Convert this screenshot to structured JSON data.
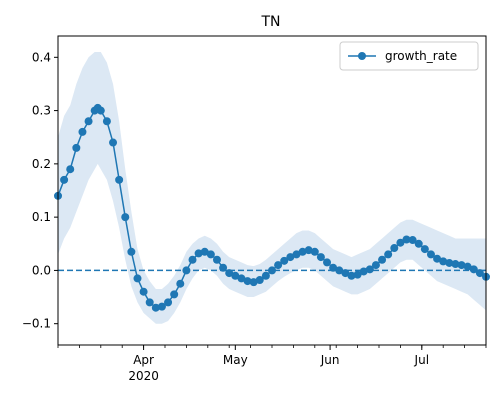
{
  "chart_data": {
    "type": "line",
    "title": "TN",
    "xlabel": "",
    "ylabel": "",
    "x_range": [
      "2020-03-04",
      "2020-07-22"
    ],
    "ylim": [
      -0.14,
      0.44
    ],
    "x_ticks": [
      {
        "date": "2020-04-01",
        "label": "Apr",
        "sublabel": "2020"
      },
      {
        "date": "2020-05-01",
        "label": "May",
        "sublabel": ""
      },
      {
        "date": "2020-06-01",
        "label": "Jun",
        "sublabel": ""
      },
      {
        "date": "2020-07-01",
        "label": "Jul",
        "sublabel": ""
      }
    ],
    "y_ticks": [
      {
        "value": -0.1,
        "label": "−0.1"
      },
      {
        "value": 0.0,
        "label": "0.0"
      },
      {
        "value": 0.1,
        "label": "0.1"
      },
      {
        "value": 0.2,
        "label": "0.2"
      },
      {
        "value": 0.3,
        "label": "0.3"
      },
      {
        "value": 0.4,
        "label": "0.4"
      }
    ],
    "legend": {
      "position": "top-right",
      "label": "growth_rate"
    },
    "reference_line": {
      "y": 0.0,
      "style": "dashed"
    },
    "colors": {
      "line": "#1f77b4",
      "band": "#dce8f4"
    },
    "series": [
      {
        "name": "growth_rate",
        "points": [
          [
            "2020-03-04",
            0.14,
            0.03,
            0.25
          ],
          [
            "2020-03-06",
            0.17,
            0.06,
            0.29
          ],
          [
            "2020-03-08",
            0.19,
            0.08,
            0.31
          ],
          [
            "2020-03-10",
            0.23,
            0.11,
            0.35
          ],
          [
            "2020-03-12",
            0.26,
            0.14,
            0.38
          ],
          [
            "2020-03-14",
            0.28,
            0.17,
            0.4
          ],
          [
            "2020-03-16",
            0.3,
            0.19,
            0.41
          ],
          [
            "2020-03-17",
            0.305,
            0.2,
            0.41
          ],
          [
            "2020-03-18",
            0.3,
            0.19,
            0.41
          ],
          [
            "2020-03-20",
            0.28,
            0.17,
            0.39
          ],
          [
            "2020-03-22",
            0.24,
            0.13,
            0.35
          ],
          [
            "2020-03-24",
            0.17,
            0.08,
            0.28
          ],
          [
            "2020-03-26",
            0.1,
            0.02,
            0.19
          ],
          [
            "2020-03-28",
            0.035,
            -0.03,
            0.11
          ],
          [
            "2020-03-30",
            -0.015,
            -0.06,
            0.04
          ],
          [
            "2020-04-01",
            -0.04,
            -0.08,
            0.0
          ],
          [
            "2020-04-03",
            -0.06,
            -0.09,
            -0.02
          ],
          [
            "2020-04-05",
            -0.07,
            -0.1,
            -0.035
          ],
          [
            "2020-04-07",
            -0.068,
            -0.1,
            -0.035
          ],
          [
            "2020-04-09",
            -0.06,
            -0.095,
            -0.025
          ],
          [
            "2020-04-11",
            -0.045,
            -0.08,
            -0.01
          ],
          [
            "2020-04-13",
            -0.025,
            -0.06,
            0.01
          ],
          [
            "2020-04-15",
            0.0,
            -0.035,
            0.035
          ],
          [
            "2020-04-17",
            0.02,
            -0.015,
            0.05
          ],
          [
            "2020-04-19",
            0.032,
            0.0,
            0.06
          ],
          [
            "2020-04-21",
            0.035,
            0.005,
            0.065
          ],
          [
            "2020-04-23",
            0.03,
            0.0,
            0.06
          ],
          [
            "2020-04-25",
            0.02,
            -0.01,
            0.05
          ],
          [
            "2020-04-27",
            0.005,
            -0.025,
            0.035
          ],
          [
            "2020-04-29",
            -0.005,
            -0.035,
            0.025
          ],
          [
            "2020-05-01",
            -0.01,
            -0.04,
            0.02
          ],
          [
            "2020-05-03",
            -0.015,
            -0.045,
            0.015
          ],
          [
            "2020-05-05",
            -0.02,
            -0.05,
            0.01
          ],
          [
            "2020-05-07",
            -0.022,
            -0.05,
            0.008
          ],
          [
            "2020-05-09",
            -0.018,
            -0.045,
            0.012
          ],
          [
            "2020-05-11",
            -0.01,
            -0.04,
            0.02
          ],
          [
            "2020-05-13",
            0.0,
            -0.03,
            0.03
          ],
          [
            "2020-05-15",
            0.01,
            -0.02,
            0.04
          ],
          [
            "2020-05-17",
            0.018,
            -0.012,
            0.05
          ],
          [
            "2020-05-19",
            0.025,
            -0.005,
            0.06
          ],
          [
            "2020-05-21",
            0.03,
            0.0,
            0.07
          ],
          [
            "2020-05-23",
            0.035,
            0.005,
            0.075
          ],
          [
            "2020-05-25",
            0.038,
            0.005,
            0.075
          ],
          [
            "2020-05-27",
            0.035,
            0.0,
            0.07
          ],
          [
            "2020-05-29",
            0.025,
            -0.01,
            0.06
          ],
          [
            "2020-05-31",
            0.015,
            -0.02,
            0.05
          ],
          [
            "2020-06-02",
            0.005,
            -0.03,
            0.04
          ],
          [
            "2020-06-04",
            0.0,
            -0.035,
            0.035
          ],
          [
            "2020-06-06",
            -0.005,
            -0.04,
            0.03
          ],
          [
            "2020-06-08",
            -0.01,
            -0.045,
            0.025
          ],
          [
            "2020-06-10",
            -0.008,
            -0.045,
            0.03
          ],
          [
            "2020-06-12",
            -0.002,
            -0.04,
            0.035
          ],
          [
            "2020-06-14",
            0.002,
            -0.035,
            0.04
          ],
          [
            "2020-06-16",
            0.01,
            -0.025,
            0.05
          ],
          [
            "2020-06-18",
            0.02,
            -0.015,
            0.06
          ],
          [
            "2020-06-20",
            0.03,
            -0.005,
            0.07
          ],
          [
            "2020-06-22",
            0.042,
            0.005,
            0.08
          ],
          [
            "2020-06-24",
            0.052,
            0.015,
            0.09
          ],
          [
            "2020-06-26",
            0.058,
            0.02,
            0.095
          ],
          [
            "2020-06-28",
            0.057,
            0.02,
            0.095
          ],
          [
            "2020-06-30",
            0.05,
            0.01,
            0.09
          ],
          [
            "2020-07-02",
            0.04,
            0.0,
            0.085
          ],
          [
            "2020-07-04",
            0.03,
            -0.01,
            0.08
          ],
          [
            "2020-07-06",
            0.022,
            -0.02,
            0.075
          ],
          [
            "2020-07-08",
            0.017,
            -0.025,
            0.07
          ],
          [
            "2020-07-10",
            0.014,
            -0.03,
            0.065
          ],
          [
            "2020-07-12",
            0.012,
            -0.035,
            0.06
          ],
          [
            "2020-07-14",
            0.01,
            -0.04,
            0.06
          ],
          [
            "2020-07-16",
            0.007,
            -0.045,
            0.06
          ],
          [
            "2020-07-18",
            0.002,
            -0.055,
            0.06
          ],
          [
            "2020-07-20",
            -0.005,
            -0.065,
            0.06
          ],
          [
            "2020-07-22",
            -0.012,
            -0.075,
            0.06
          ]
        ]
      }
    ]
  }
}
